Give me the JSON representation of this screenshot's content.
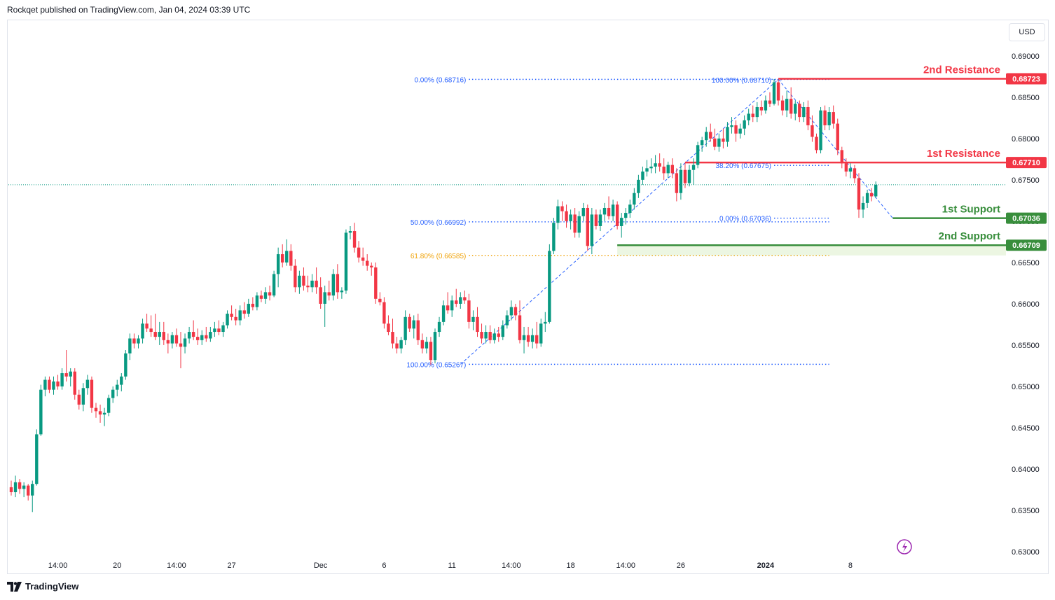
{
  "header": {
    "text": "Rockqet published on TradingView.com, Jan 04, 2024 03:39 UTC"
  },
  "currency_label": "USD",
  "footer": {
    "brand": "TradingView"
  },
  "colors": {
    "up": "#089981",
    "down": "#f23645",
    "fib": "#2962ff",
    "fib_618": "#f0a30a",
    "resistance": "#f23645",
    "support": "#388e3c",
    "last_price": "#089981"
  },
  "chart_data": {
    "type": "candlestick",
    "symbol_pair": "",
    "ylim": [
      0.63,
      0.691
    ],
    "y_ticks": [
      "0.69000",
      "0.68500",
      "0.68000",
      "0.67500",
      "0.67000",
      "0.66500",
      "0.66000",
      "0.65500",
      "0.65000",
      "0.64500",
      "0.64000",
      "0.63500",
      "0.63000"
    ],
    "y_tick_values": [
      0.69,
      0.685,
      0.68,
      0.675,
      0.67,
      0.665,
      0.66,
      0.655,
      0.65,
      0.645,
      0.64,
      0.635,
      0.63
    ],
    "x_ticks": [
      {
        "label": "14:00",
        "i": 11
      },
      {
        "label": "20",
        "i": 25
      },
      {
        "label": "14:00",
        "i": 39
      },
      {
        "label": "27",
        "i": 52
      },
      {
        "label": "Dec",
        "i": 73
      },
      {
        "label": "6",
        "i": 88
      },
      {
        "label": "11",
        "i": 104
      },
      {
        "label": "14:00",
        "i": 118
      },
      {
        "label": "18",
        "i": 132
      },
      {
        "label": "14:00",
        "i": 145
      },
      {
        "label": "26",
        "i": 158
      },
      {
        "label": "2024",
        "i": 178
      },
      {
        "label": "8",
        "i": 198
      }
    ],
    "current_price": 0.6744,
    "ohlc": [
      [
        0.6378,
        0.6386,
        0.6368,
        0.6372
      ],
      [
        0.6372,
        0.6392,
        0.6366,
        0.6384
      ],
      [
        0.6384,
        0.6388,
        0.637,
        0.6376
      ],
      [
        0.6376,
        0.6384,
        0.6366,
        0.638
      ],
      [
        0.638,
        0.6382,
        0.6362,
        0.6368
      ],
      [
        0.6368,
        0.6386,
        0.6348,
        0.6382
      ],
      [
        0.6382,
        0.6448,
        0.638,
        0.6442
      ],
      [
        0.6442,
        0.6502,
        0.644,
        0.6496
      ],
      [
        0.6496,
        0.6512,
        0.6488,
        0.6508
      ],
      [
        0.6508,
        0.6512,
        0.6492,
        0.6496
      ],
      [
        0.6496,
        0.6512,
        0.649,
        0.6506
      ],
      [
        0.6506,
        0.6514,
        0.6496,
        0.65
      ],
      [
        0.65,
        0.6522,
        0.6496,
        0.6516
      ],
      [
        0.6516,
        0.6544,
        0.6506,
        0.6512
      ],
      [
        0.6512,
        0.6522,
        0.65,
        0.6518
      ],
      [
        0.6518,
        0.6522,
        0.6484,
        0.649
      ],
      [
        0.649,
        0.6496,
        0.6472,
        0.6478
      ],
      [
        0.6478,
        0.6504,
        0.647,
        0.6498
      ],
      [
        0.6498,
        0.6514,
        0.649,
        0.6508
      ],
      [
        0.6508,
        0.6512,
        0.6468,
        0.6474
      ],
      [
        0.6474,
        0.648,
        0.6462,
        0.647
      ],
      [
        0.647,
        0.6478,
        0.6456,
        0.6466
      ],
      [
        0.6466,
        0.6474,
        0.6452,
        0.6468
      ],
      [
        0.6468,
        0.649,
        0.6464,
        0.6486
      ],
      [
        0.6486,
        0.65,
        0.648,
        0.6496
      ],
      [
        0.6496,
        0.6508,
        0.6488,
        0.6502
      ],
      [
        0.6502,
        0.6516,
        0.6494,
        0.6512
      ],
      [
        0.6512,
        0.6544,
        0.6508,
        0.654
      ],
      [
        0.654,
        0.6564,
        0.6532,
        0.6558
      ],
      [
        0.6558,
        0.6564,
        0.6546,
        0.6552
      ],
      [
        0.6552,
        0.6562,
        0.6546,
        0.6558
      ],
      [
        0.6558,
        0.6582,
        0.6552,
        0.6576
      ],
      [
        0.6576,
        0.6588,
        0.6566,
        0.657
      ],
      [
        0.657,
        0.6586,
        0.656,
        0.6566
      ],
      [
        0.6566,
        0.6588,
        0.6556,
        0.656
      ],
      [
        0.656,
        0.6578,
        0.655,
        0.6566
      ],
      [
        0.6566,
        0.6578,
        0.655,
        0.6556
      ],
      [
        0.6556,
        0.6564,
        0.654,
        0.6552
      ],
      [
        0.6552,
        0.6566,
        0.6546,
        0.6562
      ],
      [
        0.6562,
        0.657,
        0.6548,
        0.6552
      ],
      [
        0.6552,
        0.6566,
        0.6522,
        0.6548
      ],
      [
        0.6548,
        0.6564,
        0.654,
        0.6558
      ],
      [
        0.6558,
        0.6572,
        0.6552,
        0.6566
      ],
      [
        0.6566,
        0.658,
        0.6556,
        0.656
      ],
      [
        0.656,
        0.657,
        0.655,
        0.6556
      ],
      [
        0.6556,
        0.6568,
        0.655,
        0.6562
      ],
      [
        0.6562,
        0.6572,
        0.6554,
        0.6558
      ],
      [
        0.6558,
        0.6572,
        0.6554,
        0.6566
      ],
      [
        0.6566,
        0.6578,
        0.656,
        0.657
      ],
      [
        0.657,
        0.658,
        0.6562,
        0.6566
      ],
      [
        0.6566,
        0.6578,
        0.656,
        0.6574
      ],
      [
        0.6574,
        0.6592,
        0.657,
        0.6588
      ],
      [
        0.6588,
        0.6598,
        0.658,
        0.6584
      ],
      [
        0.6584,
        0.6594,
        0.6574,
        0.658
      ],
      [
        0.658,
        0.6598,
        0.6574,
        0.6592
      ],
      [
        0.6592,
        0.6602,
        0.6582,
        0.6588
      ],
      [
        0.6588,
        0.6606,
        0.6584,
        0.66
      ],
      [
        0.66,
        0.6608,
        0.6592,
        0.6596
      ],
      [
        0.6596,
        0.6614,
        0.6592,
        0.661
      ],
      [
        0.661,
        0.6616,
        0.6602,
        0.6606
      ],
      [
        0.6606,
        0.662,
        0.66,
        0.6614
      ],
      [
        0.6614,
        0.6622,
        0.6604,
        0.661
      ],
      [
        0.661,
        0.664,
        0.6608,
        0.6636
      ],
      [
        0.6636,
        0.6668,
        0.662,
        0.666
      ],
      [
        0.666,
        0.6672,
        0.6644,
        0.665
      ],
      [
        0.665,
        0.6678,
        0.6646,
        0.6664
      ],
      [
        0.6664,
        0.6672,
        0.664,
        0.6646
      ],
      [
        0.6646,
        0.6654,
        0.6614,
        0.662
      ],
      [
        0.662,
        0.664,
        0.6612,
        0.6634
      ],
      [
        0.6634,
        0.6644,
        0.6616,
        0.6622
      ],
      [
        0.6622,
        0.6634,
        0.6614,
        0.662
      ],
      [
        0.662,
        0.6636,
        0.6614,
        0.6628
      ],
      [
        0.6628,
        0.6644,
        0.6612,
        0.662
      ],
      [
        0.662,
        0.6632,
        0.6594,
        0.66
      ],
      [
        0.66,
        0.6622,
        0.6572,
        0.6614
      ],
      [
        0.6614,
        0.6628,
        0.6604,
        0.661
      ],
      [
        0.661,
        0.6642,
        0.6604,
        0.6636
      ],
      [
        0.6636,
        0.6648,
        0.6606,
        0.6614
      ],
      [
        0.6614,
        0.662,
        0.6606,
        0.6616
      ],
      [
        0.6616,
        0.669,
        0.6612,
        0.6686
      ],
      [
        0.6686,
        0.6694,
        0.6678,
        0.6688
      ],
      [
        0.6688,
        0.6698,
        0.6662,
        0.6668
      ],
      [
        0.6668,
        0.6676,
        0.665,
        0.6656
      ],
      [
        0.6656,
        0.6668,
        0.6646,
        0.6652
      ],
      [
        0.6652,
        0.666,
        0.664,
        0.6646
      ],
      [
        0.6646,
        0.665,
        0.6634,
        0.6644
      ],
      [
        0.6644,
        0.665,
        0.66,
        0.6606
      ],
      [
        0.6606,
        0.6614,
        0.6598,
        0.6602
      ],
      [
        0.6602,
        0.6608,
        0.657,
        0.6576
      ],
      [
        0.6576,
        0.6586,
        0.6562,
        0.6566
      ],
      [
        0.6566,
        0.6582,
        0.6546,
        0.6552
      ],
      [
        0.6552,
        0.656,
        0.654,
        0.6546
      ],
      [
        0.6546,
        0.656,
        0.654,
        0.6556
      ],
      [
        0.6556,
        0.6592,
        0.655,
        0.6584
      ],
      [
        0.6584,
        0.6588,
        0.6566,
        0.657
      ],
      [
        0.657,
        0.6586,
        0.6558,
        0.658
      ],
      [
        0.658,
        0.6588,
        0.655,
        0.6556
      ],
      [
        0.6556,
        0.6564,
        0.654,
        0.6546
      ],
      [
        0.6546,
        0.656,
        0.654,
        0.6554
      ],
      [
        0.6554,
        0.656,
        0.6526,
        0.6532
      ],
      [
        0.6532,
        0.657,
        0.6528,
        0.6566
      ],
      [
        0.6566,
        0.6584,
        0.656,
        0.6578
      ],
      [
        0.6578,
        0.6604,
        0.6574,
        0.6598
      ],
      [
        0.6598,
        0.6614,
        0.6588,
        0.6592
      ],
      [
        0.6592,
        0.661,
        0.6584,
        0.6604
      ],
      [
        0.6604,
        0.6618,
        0.6596,
        0.66
      ],
      [
        0.66,
        0.6614,
        0.6594,
        0.6608
      ],
      [
        0.6608,
        0.6616,
        0.66,
        0.6604
      ],
      [
        0.6604,
        0.6612,
        0.657,
        0.6578
      ],
      [
        0.6578,
        0.6592,
        0.6568,
        0.6584
      ],
      [
        0.6584,
        0.6596,
        0.656,
        0.6566
      ],
      [
        0.6566,
        0.6576,
        0.6552,
        0.6558
      ],
      [
        0.6558,
        0.6574,
        0.6552,
        0.6566
      ],
      [
        0.6566,
        0.6574,
        0.6552,
        0.6556
      ],
      [
        0.6556,
        0.657,
        0.6552,
        0.6564
      ],
      [
        0.6564,
        0.6572,
        0.6554,
        0.656
      ],
      [
        0.656,
        0.658,
        0.6556,
        0.6574
      ],
      [
        0.6574,
        0.6592,
        0.657,
        0.6586
      ],
      [
        0.6586,
        0.6604,
        0.658,
        0.6596
      ],
      [
        0.6596,
        0.66,
        0.658,
        0.6586
      ],
      [
        0.6586,
        0.6604,
        0.6552,
        0.6556
      ],
      [
        0.6556,
        0.6572,
        0.654,
        0.6562
      ],
      [
        0.6562,
        0.6572,
        0.6548,
        0.6554
      ],
      [
        0.6554,
        0.657,
        0.6546,
        0.6562
      ],
      [
        0.6562,
        0.6578,
        0.6546,
        0.6552
      ],
      [
        0.6552,
        0.6582,
        0.6548,
        0.6576
      ],
      [
        0.6576,
        0.659,
        0.6566,
        0.6578
      ],
      [
        0.6578,
        0.6672,
        0.6576,
        0.6664
      ],
      [
        0.6664,
        0.6704,
        0.666,
        0.6698
      ],
      [
        0.6698,
        0.6726,
        0.669,
        0.6718
      ],
      [
        0.6718,
        0.6724,
        0.67,
        0.6712
      ],
      [
        0.6712,
        0.672,
        0.6692,
        0.67
      ],
      [
        0.67,
        0.6714,
        0.669,
        0.6708
      ],
      [
        0.6708,
        0.6716,
        0.668,
        0.6686
      ],
      [
        0.6686,
        0.6712,
        0.668,
        0.6706
      ],
      [
        0.6706,
        0.6722,
        0.67,
        0.6716
      ],
      [
        0.6716,
        0.672,
        0.6664,
        0.667
      ],
      [
        0.667,
        0.6716,
        0.666,
        0.6708
      ],
      [
        0.6708,
        0.6714,
        0.669,
        0.6694
      ],
      [
        0.6694,
        0.6714,
        0.6688,
        0.6708
      ],
      [
        0.6708,
        0.6722,
        0.67,
        0.6716
      ],
      [
        0.6716,
        0.673,
        0.6702,
        0.6706
      ],
      [
        0.6706,
        0.6726,
        0.67,
        0.672
      ],
      [
        0.672,
        0.6724,
        0.669,
        0.6694
      ],
      [
        0.6694,
        0.671,
        0.668,
        0.6704
      ],
      [
        0.6704,
        0.6716,
        0.6696,
        0.671
      ],
      [
        0.671,
        0.6726,
        0.6704,
        0.672
      ],
      [
        0.672,
        0.674,
        0.6714,
        0.6734
      ],
      [
        0.6734,
        0.6756,
        0.6728,
        0.675
      ],
      [
        0.675,
        0.6766,
        0.6744,
        0.676
      ],
      [
        0.676,
        0.6774,
        0.6754,
        0.6764
      ],
      [
        0.6764,
        0.6776,
        0.6758,
        0.6766
      ],
      [
        0.6766,
        0.678,
        0.6758,
        0.677
      ],
      [
        0.677,
        0.6782,
        0.676,
        0.6766
      ],
      [
        0.6766,
        0.6776,
        0.675,
        0.6758
      ],
      [
        0.6758,
        0.6772,
        0.6752,
        0.6768
      ],
      [
        0.6768,
        0.6776,
        0.6752,
        0.6758
      ],
      [
        0.6758,
        0.6764,
        0.6724,
        0.6734
      ],
      [
        0.6734,
        0.677,
        0.6726,
        0.6762
      ],
      [
        0.6762,
        0.677,
        0.674,
        0.6746
      ],
      [
        0.6746,
        0.6768,
        0.6742,
        0.6762
      ],
      [
        0.6762,
        0.6776,
        0.6744,
        0.6768
      ],
      [
        0.6768,
        0.6796,
        0.6764,
        0.6792
      ],
      [
        0.6792,
        0.6802,
        0.6784,
        0.6798
      ],
      [
        0.6798,
        0.6814,
        0.679,
        0.6808
      ],
      [
        0.6808,
        0.6818,
        0.6796,
        0.68
      ],
      [
        0.68,
        0.6812,
        0.6786,
        0.679
      ],
      [
        0.679,
        0.6806,
        0.6784,
        0.68
      ],
      [
        0.68,
        0.6812,
        0.6788,
        0.6796
      ],
      [
        0.6796,
        0.682,
        0.679,
        0.6814
      ],
      [
        0.6814,
        0.6826,
        0.6806,
        0.6816
      ],
      [
        0.6816,
        0.6822,
        0.6796,
        0.6806
      ],
      [
        0.6806,
        0.6818,
        0.68,
        0.6812
      ],
      [
        0.6812,
        0.6828,
        0.6804,
        0.6822
      ],
      [
        0.6822,
        0.6836,
        0.6816,
        0.683
      ],
      [
        0.683,
        0.684,
        0.682,
        0.6826
      ],
      [
        0.6826,
        0.6844,
        0.682,
        0.6838
      ],
      [
        0.6838,
        0.6846,
        0.6828,
        0.6834
      ],
      [
        0.6834,
        0.6852,
        0.683,
        0.6846
      ],
      [
        0.6846,
        0.6856,
        0.6838,
        0.6842
      ],
      [
        0.6842,
        0.6872,
        0.684,
        0.6868
      ],
      [
        0.6868,
        0.6871,
        0.684,
        0.6846
      ],
      [
        0.6846,
        0.6852,
        0.6828,
        0.6834
      ],
      [
        0.6834,
        0.6858,
        0.6826,
        0.6848
      ],
      [
        0.6848,
        0.6862,
        0.6824,
        0.683
      ],
      [
        0.683,
        0.6846,
        0.6822,
        0.6842
      ],
      [
        0.6842,
        0.6846,
        0.682,
        0.6826
      ],
      [
        0.6826,
        0.6844,
        0.682,
        0.6838
      ],
      [
        0.6838,
        0.6846,
        0.681,
        0.6816
      ],
      [
        0.6816,
        0.6828,
        0.6796,
        0.6802
      ],
      [
        0.6802,
        0.6806,
        0.6782,
        0.6786
      ],
      [
        0.6786,
        0.6838,
        0.6782,
        0.6834
      ],
      [
        0.6834,
        0.684,
        0.681,
        0.6816
      ],
      [
        0.6816,
        0.6838,
        0.681,
        0.6832
      ],
      [
        0.6832,
        0.684,
        0.6812,
        0.6818
      ],
      [
        0.6818,
        0.6824,
        0.678,
        0.6786
      ],
      [
        0.6786,
        0.679,
        0.6764,
        0.677
      ],
      [
        0.677,
        0.6776,
        0.6754,
        0.676
      ],
      [
        0.676,
        0.677,
        0.6752,
        0.6764
      ],
      [
        0.6764,
        0.6768,
        0.6746,
        0.6752
      ],
      [
        0.6752,
        0.6758,
        0.6704,
        0.6714
      ],
      [
        0.6714,
        0.673,
        0.6704,
        0.6722
      ],
      [
        0.6722,
        0.6738,
        0.6716,
        0.6734
      ],
      [
        0.6734,
        0.674,
        0.6724,
        0.673
      ],
      [
        0.673,
        0.6748,
        0.6728,
        0.6744
      ]
    ],
    "fib_levels": [
      {
        "label": "0.00% (0.68716)",
        "price": 0.68716,
        "from": 108,
        "to": 193,
        "color": "#2962ff"
      },
      {
        "label": "100.00% (0.68710)",
        "price": 0.6871,
        "from": 180,
        "to": 182,
        "color": "#2962ff"
      },
      {
        "label": "50.00% (0.66992)",
        "price": 0.66992,
        "from": 108,
        "to": 193,
        "color": "#2962ff"
      },
      {
        "label": "61.80% (0.66585)",
        "price": 0.66585,
        "from": 108,
        "to": 193,
        "color": "#f0a30a"
      },
      {
        "label": "100.00% (0.65267)",
        "price": 0.65267,
        "from": 108,
        "to": 193,
        "color": "#2962ff"
      },
      {
        "label": "38.20% (0.67675)",
        "price": 0.67675,
        "from": 180,
        "to": 193,
        "color": "#2962ff"
      },
      {
        "label": "0.00% (0.67036)",
        "price": 0.67036,
        "from": 180,
        "to": 193,
        "color": "#2962ff"
      }
    ],
    "levels": [
      {
        "label": "2nd Resistance",
        "price": 0.68723,
        "tag": "0.68723",
        "kind": "resistance"
      },
      {
        "label": "1st Resistance",
        "price": 0.6771,
        "tag": "0.67710",
        "kind": "resistance"
      },
      {
        "label": "1st Support",
        "price": 0.67036,
        "tag": "0.67036",
        "kind": "support"
      },
      {
        "label": "2nd Support",
        "price": 0.66709,
        "tag": "0.66709",
        "kind": "support"
      }
    ]
  }
}
